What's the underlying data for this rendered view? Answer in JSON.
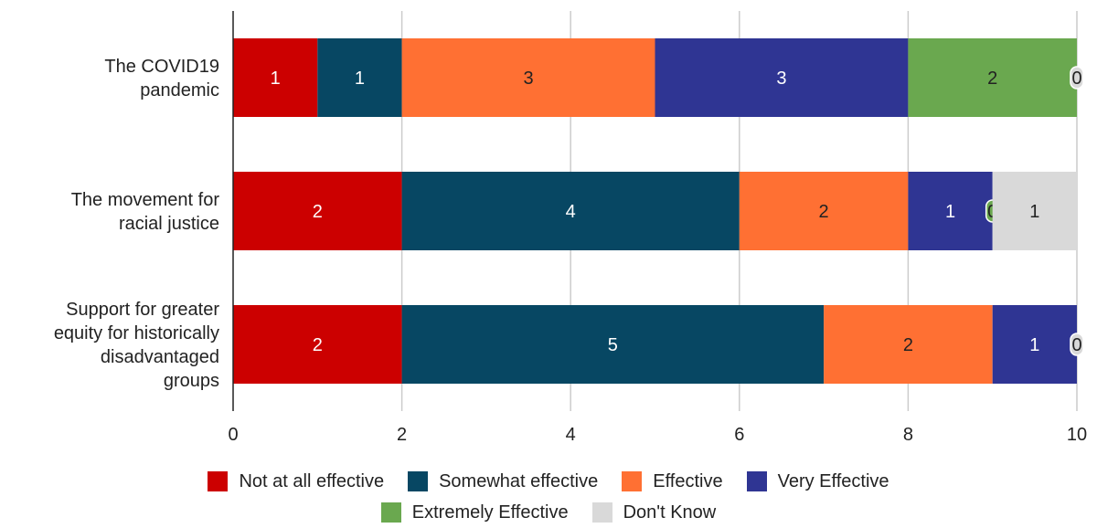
{
  "chart_data": {
    "type": "bar",
    "orientation": "horizontal",
    "stacked": true,
    "categories": [
      [
        "The COVID19",
        "pandemic"
      ],
      [
        "The movement for",
        "racial justice"
      ],
      [
        "Support for greater",
        "equity for historically",
        "disadvantaged",
        "groups"
      ]
    ],
    "series": [
      {
        "name": "Not at all effective",
        "color": "#cc0000",
        "values": [
          1,
          2,
          2
        ]
      },
      {
        "name": "Somewhat effective",
        "color": "#074763",
        "values": [
          1,
          4,
          5
        ]
      },
      {
        "name": "Effective",
        "color": "#ff7033",
        "values": [
          3,
          2,
          2
        ]
      },
      {
        "name": "Very Effective",
        "color": "#2f3593",
        "values": [
          3,
          1,
          1
        ]
      },
      {
        "name": "Extremely Effective",
        "color": "#6aa84f",
        "values": [
          2,
          0,
          null
        ]
      },
      {
        "name": "Don't Know",
        "color": "#d9d9d9",
        "values": [
          0,
          1,
          0
        ]
      }
    ],
    "xlim": [
      0,
      10
    ],
    "xticks": [
      "0",
      "2",
      "4",
      "6",
      "8",
      "10"
    ],
    "grid": true,
    "legend_position": "bottom"
  }
}
